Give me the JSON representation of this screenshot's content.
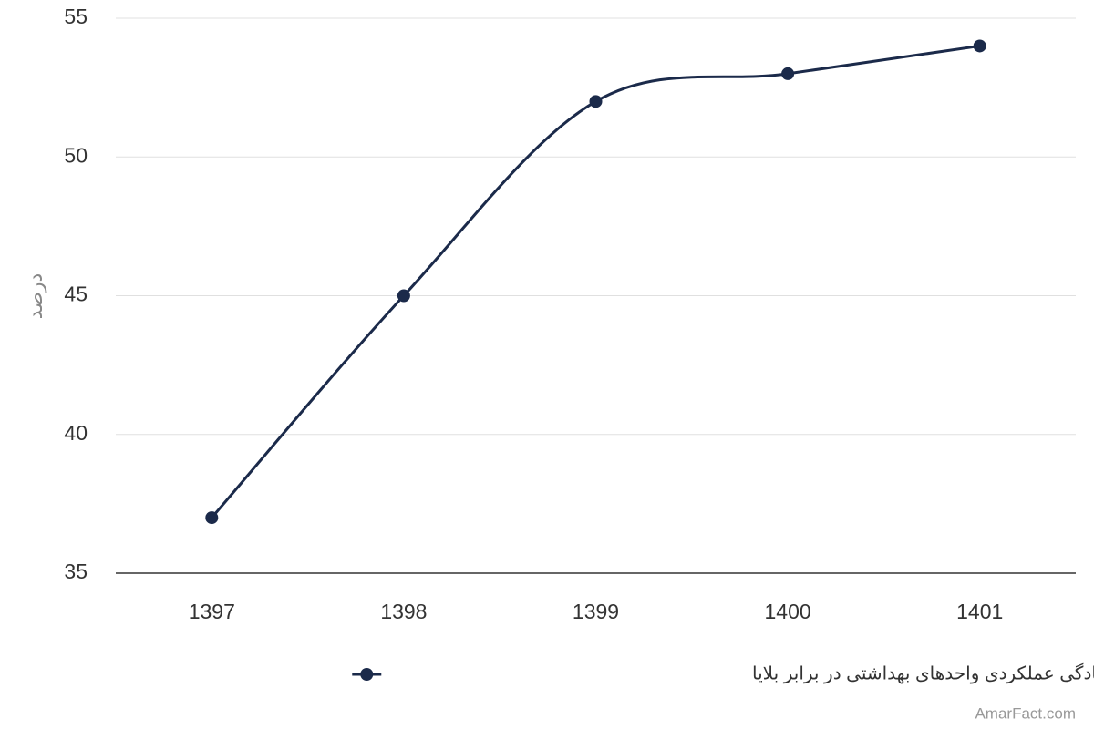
{
  "chart_data": {
    "type": "line",
    "y_label": "درصد",
    "categories": [
      "1397",
      "1398",
      "1399",
      "1400",
      "1401"
    ],
    "series": [
      {
        "name": "آمادگی عملکردی واحدهای بهداشتی در برابر بلایا",
        "color": "#1b2a4a",
        "values": [
          37,
          45,
          52,
          53,
          54
        ]
      }
    ],
    "ylim": [
      35,
      55
    ],
    "yticks": [
      35,
      40,
      45,
      50,
      55
    ],
    "grid": true,
    "legend": "bottom",
    "credit": "AmarFact.com"
  }
}
